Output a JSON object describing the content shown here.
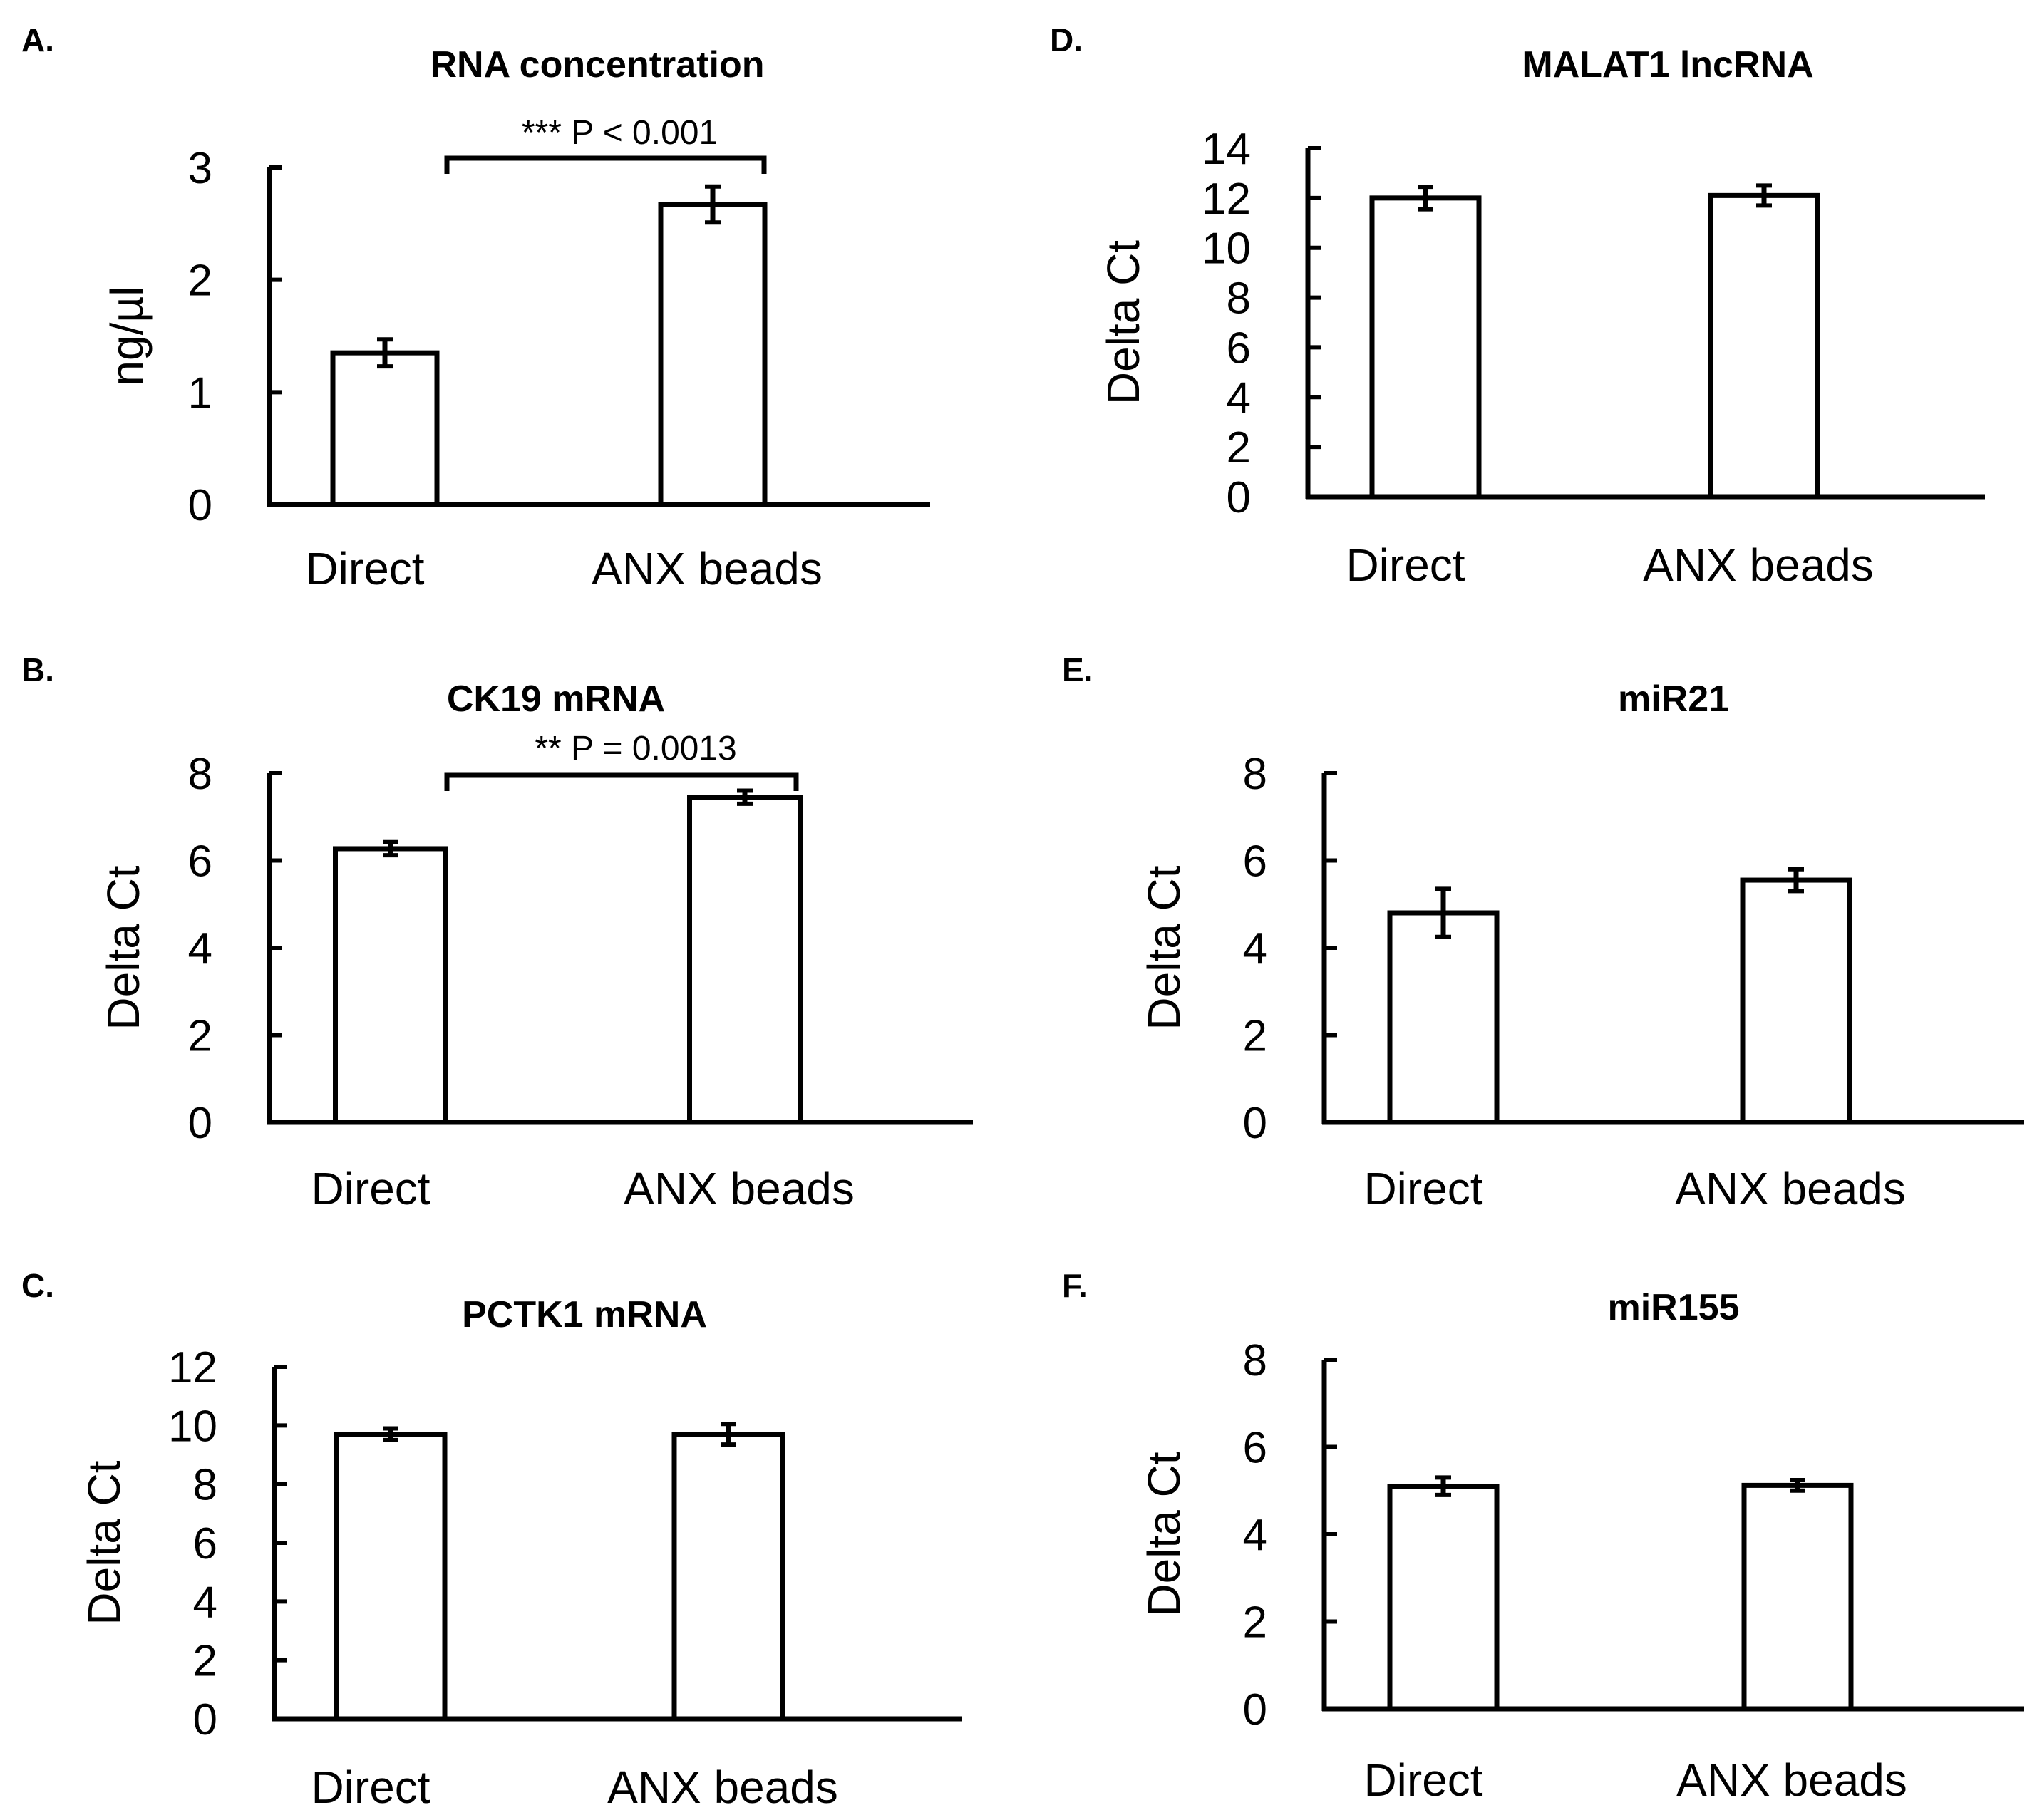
{
  "figure": {
    "panel_count": 6
  },
  "chart_data": [
    {
      "panel": "A.",
      "type": "bar",
      "title": "RNA concentration",
      "xlabel": "",
      "ylabel": "ng/µl",
      "ylim": [
        0,
        3
      ],
      "yticks": [
        0,
        1,
        2,
        3
      ],
      "categories": [
        "Direct",
        "ANX beads"
      ],
      "values": [
        1.35,
        2.67
      ],
      "errors": [
        0.12,
        0.16
      ],
      "significance": "*** P < 0.001"
    },
    {
      "panel": "B.",
      "type": "bar",
      "title": "CK19 mRNA",
      "xlabel": "",
      "ylabel": "Delta Ct",
      "ylim": [
        0,
        8
      ],
      "yticks": [
        0,
        2,
        4,
        6,
        8
      ],
      "categories": [
        "Direct",
        "ANX beads"
      ],
      "values": [
        6.27,
        7.45
      ],
      "errors": [
        0.15,
        0.15
      ],
      "significance": "** P = 0.0013"
    },
    {
      "panel": "C.",
      "type": "bar",
      "title": "PCTK1 mRNA",
      "xlabel": "",
      "ylabel": "Delta Ct",
      "ylim": [
        0,
        12
      ],
      "yticks": [
        0,
        2,
        4,
        6,
        8,
        10,
        12
      ],
      "categories": [
        "Direct",
        "ANX beads"
      ],
      "values": [
        9.7,
        9.7
      ],
      "errors": [
        0.2,
        0.35
      ],
      "significance": ""
    },
    {
      "panel": "D.",
      "type": "bar",
      "title": "MALAT1 lncRNA",
      "xlabel": "",
      "ylabel": "Delta Ct",
      "ylim": [
        0,
        14
      ],
      "yticks": [
        0,
        2,
        4,
        6,
        8,
        10,
        12,
        14
      ],
      "categories": [
        "Direct",
        "ANX beads"
      ],
      "values": [
        12.0,
        12.1
      ],
      "errors": [
        0.45,
        0.4
      ],
      "significance": ""
    },
    {
      "panel": "E.",
      "type": "bar",
      "title": "miR21",
      "xlabel": "",
      "ylabel": "Delta Ct",
      "ylim": [
        0,
        8
      ],
      "yticks": [
        0,
        2,
        4,
        6,
        8
      ],
      "categories": [
        "Direct",
        "ANX beads"
      ],
      "values": [
        4.8,
        5.55
      ],
      "errors": [
        0.55,
        0.25
      ],
      "significance": ""
    },
    {
      "panel": "F.",
      "type": "bar",
      "title": "miR155",
      "xlabel": "",
      "ylabel": "Delta Ct",
      "ylim": [
        0,
        8
      ],
      "yticks": [
        0,
        2,
        4,
        6,
        8
      ],
      "categories": [
        "Direct",
        "ANX beads"
      ],
      "values": [
        5.1,
        5.12
      ],
      "errors": [
        0.2,
        0.12
      ],
      "significance": ""
    }
  ]
}
